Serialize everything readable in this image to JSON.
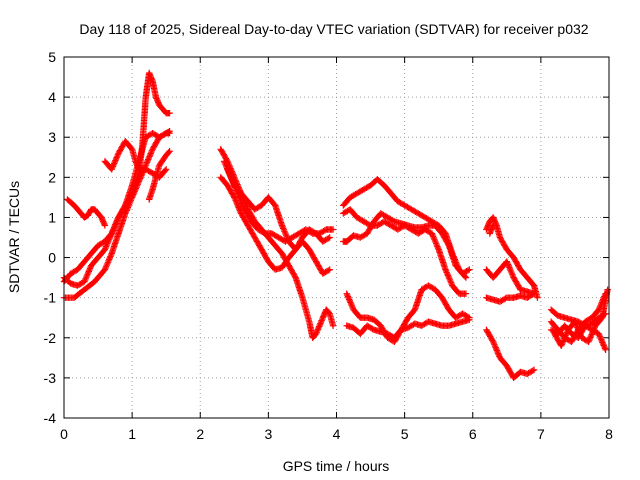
{
  "chart_data": {
    "type": "scatter",
    "title": "Day 118 of 2025, Sidereal Day-to-day VTEC variation (SDTVAR) for receiver p032",
    "xlabel": "GPS time / hours",
    "ylabel": "SDTVAR / TECUs",
    "xlim": [
      0,
      8
    ],
    "ylim": [
      -4,
      5
    ],
    "x_ticks": [
      "0",
      "1",
      "2",
      "3",
      "4",
      "5",
      "6",
      "7",
      "8"
    ],
    "y_ticks": [
      "-4",
      "-3",
      "-2",
      "-1",
      "0",
      "1",
      "2",
      "3",
      "4",
      "5"
    ],
    "grid": true,
    "marker": "+",
    "color": "#ff0000",
    "segments": [
      [
        [
          0.0,
          -0.5
        ],
        [
          0.1,
          -0.65
        ],
        [
          0.2,
          -0.7
        ],
        [
          0.3,
          -0.6
        ],
        [
          0.4,
          -0.2
        ],
        [
          0.5,
          0.0
        ],
        [
          0.6,
          0.2
        ],
        [
          0.7,
          0.6
        ],
        [
          0.8,
          1.0
        ],
        [
          0.9,
          1.3
        ],
        [
          1.0,
          1.6
        ],
        [
          1.1,
          2.1
        ],
        [
          1.15,
          2.8
        ],
        [
          1.2,
          4.0
        ],
        [
          1.25,
          4.6
        ],
        [
          1.3,
          4.4
        ],
        [
          1.35,
          4.0
        ],
        [
          1.4,
          3.8
        ],
        [
          1.5,
          3.6
        ],
        [
          1.55,
          3.6
        ]
      ],
      [
        [
          0.0,
          -1.0
        ],
        [
          0.15,
          -1.0
        ],
        [
          0.3,
          -0.8
        ],
        [
          0.45,
          -0.6
        ],
        [
          0.6,
          -0.3
        ],
        [
          0.7,
          0.1
        ],
        [
          0.8,
          0.6
        ],
        [
          0.9,
          1.1
        ],
        [
          1.0,
          1.5
        ],
        [
          1.1,
          1.9
        ],
        [
          1.2,
          2.3
        ],
        [
          1.3,
          2.7
        ],
        [
          1.4,
          3.0
        ],
        [
          1.5,
          3.1
        ],
        [
          1.55,
          3.15
        ]
      ],
      [
        [
          0.0,
          -0.6
        ],
        [
          0.1,
          -0.4
        ],
        [
          0.2,
          -0.3
        ],
        [
          0.3,
          -0.1
        ],
        [
          0.4,
          0.1
        ],
        [
          0.5,
          0.3
        ],
        [
          0.6,
          0.4
        ],
        [
          0.7,
          0.6
        ],
        [
          0.8,
          1.0
        ],
        [
          0.9,
          1.3
        ],
        [
          1.0,
          1.8
        ],
        [
          1.1,
          2.4
        ],
        [
          1.2,
          3.0
        ],
        [
          1.3,
          3.1
        ],
        [
          1.4,
          3.0
        ],
        [
          1.5,
          3.1
        ],
        [
          1.55,
          3.1
        ]
      ],
      [
        [
          0.6,
          2.4
        ],
        [
          0.7,
          2.2
        ],
        [
          0.8,
          2.6
        ],
        [
          0.9,
          2.9
        ],
        [
          1.0,
          2.7
        ],
        [
          1.05,
          2.4
        ],
        [
          1.1,
          2.2
        ],
        [
          1.2,
          2.2
        ],
        [
          1.3,
          2.1
        ],
        [
          1.4,
          2.0
        ],
        [
          1.5,
          2.2
        ]
      ],
      [
        [
          1.25,
          1.45
        ],
        [
          1.3,
          1.7
        ],
        [
          1.35,
          2.0
        ],
        [
          1.4,
          2.3
        ],
        [
          1.5,
          2.55
        ],
        [
          1.55,
          2.65
        ]
      ],
      [
        [
          0.05,
          1.45
        ],
        [
          0.15,
          1.3
        ],
        [
          0.25,
          1.1
        ],
        [
          0.3,
          1.0
        ],
        [
          0.35,
          1.05
        ],
        [
          0.4,
          1.2
        ],
        [
          0.45,
          1.2
        ],
        [
          0.55,
          1.0
        ],
        [
          0.6,
          0.8
        ]
      ],
      [
        [
          2.3,
          2.7
        ],
        [
          2.4,
          2.4
        ],
        [
          2.5,
          2.0
        ],
        [
          2.6,
          1.6
        ],
        [
          2.7,
          1.2
        ],
        [
          2.8,
          0.9
        ],
        [
          2.9,
          0.7
        ],
        [
          3.0,
          0.5
        ],
        [
          3.1,
          0.3
        ],
        [
          3.2,
          0.1
        ],
        [
          3.3,
          -0.2
        ],
        [
          3.4,
          -0.5
        ],
        [
          3.5,
          -1.0
        ],
        [
          3.6,
          -1.6
        ],
        [
          3.65,
          -2.0
        ],
        [
          3.7,
          -1.9
        ],
        [
          3.8,
          -1.5
        ],
        [
          3.85,
          -1.3
        ],
        [
          3.9,
          -1.4
        ],
        [
          3.95,
          -1.7
        ]
      ],
      [
        [
          2.3,
          2.0
        ],
        [
          2.4,
          1.8
        ],
        [
          2.5,
          1.5
        ],
        [
          2.6,
          1.1
        ],
        [
          2.7,
          0.8
        ],
        [
          2.8,
          0.5
        ],
        [
          2.9,
          0.2
        ],
        [
          3.0,
          -0.1
        ],
        [
          3.1,
          -0.3
        ],
        [
          3.2,
          -0.25
        ],
        [
          3.3,
          0.0
        ],
        [
          3.4,
          0.2
        ],
        [
          3.5,
          0.4
        ],
        [
          3.6,
          0.2
        ],
        [
          3.7,
          -0.1
        ],
        [
          3.8,
          -0.4
        ],
        [
          3.9,
          -0.3
        ]
      ],
      [
        [
          2.35,
          2.4
        ],
        [
          2.45,
          2.0
        ],
        [
          2.55,
          1.6
        ],
        [
          2.65,
          1.2
        ],
        [
          2.75,
          0.9
        ],
        [
          2.85,
          0.7
        ],
        [
          2.95,
          0.6
        ],
        [
          3.05,
          0.6
        ],
        [
          3.15,
          0.5
        ],
        [
          3.25,
          0.4
        ],
        [
          3.35,
          0.5
        ],
        [
          3.45,
          0.6
        ],
        [
          3.55,
          0.7
        ],
        [
          3.65,
          0.6
        ],
        [
          3.75,
          0.6
        ],
        [
          3.85,
          0.7
        ],
        [
          3.95,
          0.7
        ]
      ],
      [
        [
          2.4,
          2.2
        ],
        [
          2.5,
          1.8
        ],
        [
          2.6,
          1.6
        ],
        [
          2.8,
          1.2
        ],
        [
          2.9,
          1.3
        ],
        [
          3.0,
          1.5
        ],
        [
          3.1,
          1.3
        ],
        [
          3.2,
          0.8
        ],
        [
          3.3,
          0.4
        ],
        [
          3.4,
          0.2
        ],
        [
          3.5,
          0.5
        ],
        [
          3.6,
          0.7
        ],
        [
          3.7,
          0.6
        ],
        [
          3.8,
          0.4
        ],
        [
          3.9,
          0.5
        ]
      ],
      [
        [
          4.1,
          1.3
        ],
        [
          4.2,
          1.5
        ],
        [
          4.3,
          1.6
        ],
        [
          4.4,
          1.7
        ],
        [
          4.5,
          1.8
        ],
        [
          4.6,
          1.95
        ],
        [
          4.7,
          1.8
        ],
        [
          4.8,
          1.6
        ],
        [
          4.9,
          1.4
        ],
        [
          5.0,
          1.3
        ],
        [
          5.1,
          1.2
        ],
        [
          5.2,
          1.1
        ],
        [
          5.3,
          1.0
        ],
        [
          5.4,
          0.9
        ],
        [
          5.5,
          0.8
        ],
        [
          5.6,
          0.6
        ],
        [
          5.7,
          0.1
        ],
        [
          5.8,
          -0.3
        ],
        [
          5.9,
          -0.5
        ]
      ],
      [
        [
          4.1,
          1.1
        ],
        [
          4.2,
          1.2
        ],
        [
          4.3,
          1.0
        ],
        [
          4.4,
          0.9
        ],
        [
          4.5,
          0.8
        ],
        [
          4.6,
          0.8
        ],
        [
          4.7,
          0.9
        ],
        [
          4.8,
          0.8
        ],
        [
          4.9,
          0.7
        ],
        [
          5.0,
          0.8
        ],
        [
          5.1,
          0.7
        ],
        [
          5.2,
          0.6
        ],
        [
          5.3,
          0.7
        ],
        [
          5.4,
          0.6
        ],
        [
          5.5,
          0.2
        ],
        [
          5.6,
          -0.3
        ],
        [
          5.7,
          -0.7
        ],
        [
          5.8,
          -0.9
        ],
        [
          5.9,
          -0.9
        ]
      ],
      [
        [
          4.15,
          0.4
        ],
        [
          4.25,
          0.55
        ],
        [
          4.35,
          0.5
        ],
        [
          4.45,
          0.6
        ],
        [
          4.55,
          0.9
        ],
        [
          4.65,
          1.1
        ],
        [
          4.75,
          1.0
        ],
        [
          4.85,
          0.9
        ],
        [
          4.95,
          0.85
        ],
        [
          5.05,
          0.8
        ],
        [
          5.15,
          0.75
        ],
        [
          5.25,
          0.75
        ],
        [
          5.35,
          0.8
        ],
        [
          5.45,
          0.8
        ],
        [
          5.55,
          0.6
        ],
        [
          5.65,
          0.3
        ],
        [
          5.75,
          -0.2
        ],
        [
          5.85,
          -0.4
        ],
        [
          5.95,
          -0.3
        ]
      ],
      [
        [
          4.15,
          -0.9
        ],
        [
          4.25,
          -1.3
        ],
        [
          4.35,
          -1.5
        ],
        [
          4.45,
          -1.5
        ],
        [
          4.55,
          -1.55
        ],
        [
          4.65,
          -1.7
        ],
        [
          4.75,
          -2.0
        ],
        [
          4.85,
          -2.1
        ],
        [
          4.95,
          -1.8
        ],
        [
          5.05,
          -1.5
        ],
        [
          5.15,
          -1.3
        ],
        [
          5.25,
          -0.8
        ],
        [
          5.35,
          -0.7
        ],
        [
          5.45,
          -0.8
        ],
        [
          5.55,
          -1.0
        ],
        [
          5.65,
          -1.3
        ],
        [
          5.75,
          -1.5
        ],
        [
          5.85,
          -1.4
        ],
        [
          5.95,
          -1.5
        ]
      ],
      [
        [
          4.15,
          -1.7
        ],
        [
          4.25,
          -1.75
        ],
        [
          4.35,
          -1.9
        ],
        [
          4.45,
          -1.7
        ],
        [
          4.55,
          -1.8
        ],
        [
          4.65,
          -1.85
        ],
        [
          4.75,
          -1.9
        ],
        [
          4.85,
          -2.0
        ],
        [
          4.95,
          -1.8
        ],
        [
          5.05,
          -1.75
        ],
        [
          5.15,
          -1.65
        ],
        [
          5.25,
          -1.7
        ],
        [
          5.35,
          -1.6
        ],
        [
          5.45,
          -1.65
        ],
        [
          5.55,
          -1.7
        ],
        [
          5.65,
          -1.7
        ],
        [
          5.75,
          -1.65
        ],
        [
          5.85,
          -1.6
        ],
        [
          5.95,
          -1.55
        ]
      ],
      [
        [
          4.1,
          0.4
        ],
        [
          4.15,
          0.4
        ]
      ],
      [
        [
          6.2,
          0.7
        ],
        [
          6.25,
          0.9
        ],
        [
          6.3,
          1.0
        ],
        [
          6.35,
          0.8
        ],
        [
          6.4,
          0.5
        ],
        [
          6.5,
          0.2
        ],
        [
          6.6,
          0.0
        ],
        [
          6.7,
          -0.3
        ],
        [
          6.8,
          -0.5
        ],
        [
          6.9,
          -0.7
        ],
        [
          6.95,
          -1.0
        ]
      ],
      [
        [
          6.2,
          -0.3
        ],
        [
          6.3,
          -0.5
        ],
        [
          6.4,
          -0.3
        ],
        [
          6.5,
          -0.1
        ],
        [
          6.6,
          -0.5
        ],
        [
          6.7,
          -0.8
        ],
        [
          6.8,
          -0.85
        ],
        [
          6.9,
          -0.9
        ]
      ],
      [
        [
          6.2,
          -1.0
        ],
        [
          6.3,
          -1.05
        ],
        [
          6.4,
          -1.1
        ],
        [
          6.5,
          -1.0
        ],
        [
          6.6,
          -1.0
        ],
        [
          6.7,
          -0.95
        ],
        [
          6.8,
          -1.0
        ],
        [
          6.9,
          -0.9
        ]
      ],
      [
        [
          6.2,
          -1.8
        ],
        [
          6.3,
          -2.1
        ],
        [
          6.4,
          -2.5
        ],
        [
          6.5,
          -2.7
        ],
        [
          6.6,
          -3.0
        ],
        [
          6.7,
          -2.85
        ],
        [
          6.8,
          -2.9
        ],
        [
          6.9,
          -2.8
        ]
      ],
      [
        [
          6.25,
          0.6
        ],
        [
          6.3,
          0.8
        ]
      ],
      [
        [
          7.15,
          -1.3
        ],
        [
          7.25,
          -1.45
        ],
        [
          7.35,
          -1.5
        ],
        [
          7.45,
          -1.55
        ],
        [
          7.55,
          -1.6
        ],
        [
          7.65,
          -1.7
        ],
        [
          7.75,
          -1.65
        ],
        [
          7.85,
          -1.5
        ],
        [
          7.95,
          -1.4
        ]
      ],
      [
        [
          7.15,
          -1.8
        ],
        [
          7.25,
          -1.9
        ],
        [
          7.35,
          -1.7
        ],
        [
          7.45,
          -1.9
        ],
        [
          7.55,
          -2.0
        ],
        [
          7.65,
          -1.7
        ],
        [
          7.75,
          -1.8
        ],
        [
          7.85,
          -1.9
        ],
        [
          7.95,
          -2.3
        ]
      ],
      [
        [
          7.15,
          -1.6
        ],
        [
          7.25,
          -1.8
        ],
        [
          7.35,
          -2.0
        ],
        [
          7.45,
          -2.1
        ],
        [
          7.55,
          -1.8
        ],
        [
          7.65,
          -1.6
        ],
        [
          7.75,
          -1.5
        ],
        [
          7.85,
          -1.3
        ],
        [
          7.95,
          -0.9
        ]
      ],
      [
        [
          7.2,
          -1.9
        ],
        [
          7.3,
          -2.2
        ],
        [
          7.4,
          -1.8
        ],
        [
          7.5,
          -1.6
        ],
        [
          7.6,
          -2.0
        ],
        [
          7.7,
          -2.1
        ],
        [
          7.8,
          -1.7
        ],
        [
          7.9,
          -1.5
        ],
        [
          7.98,
          -0.8
        ]
      ]
    ]
  }
}
